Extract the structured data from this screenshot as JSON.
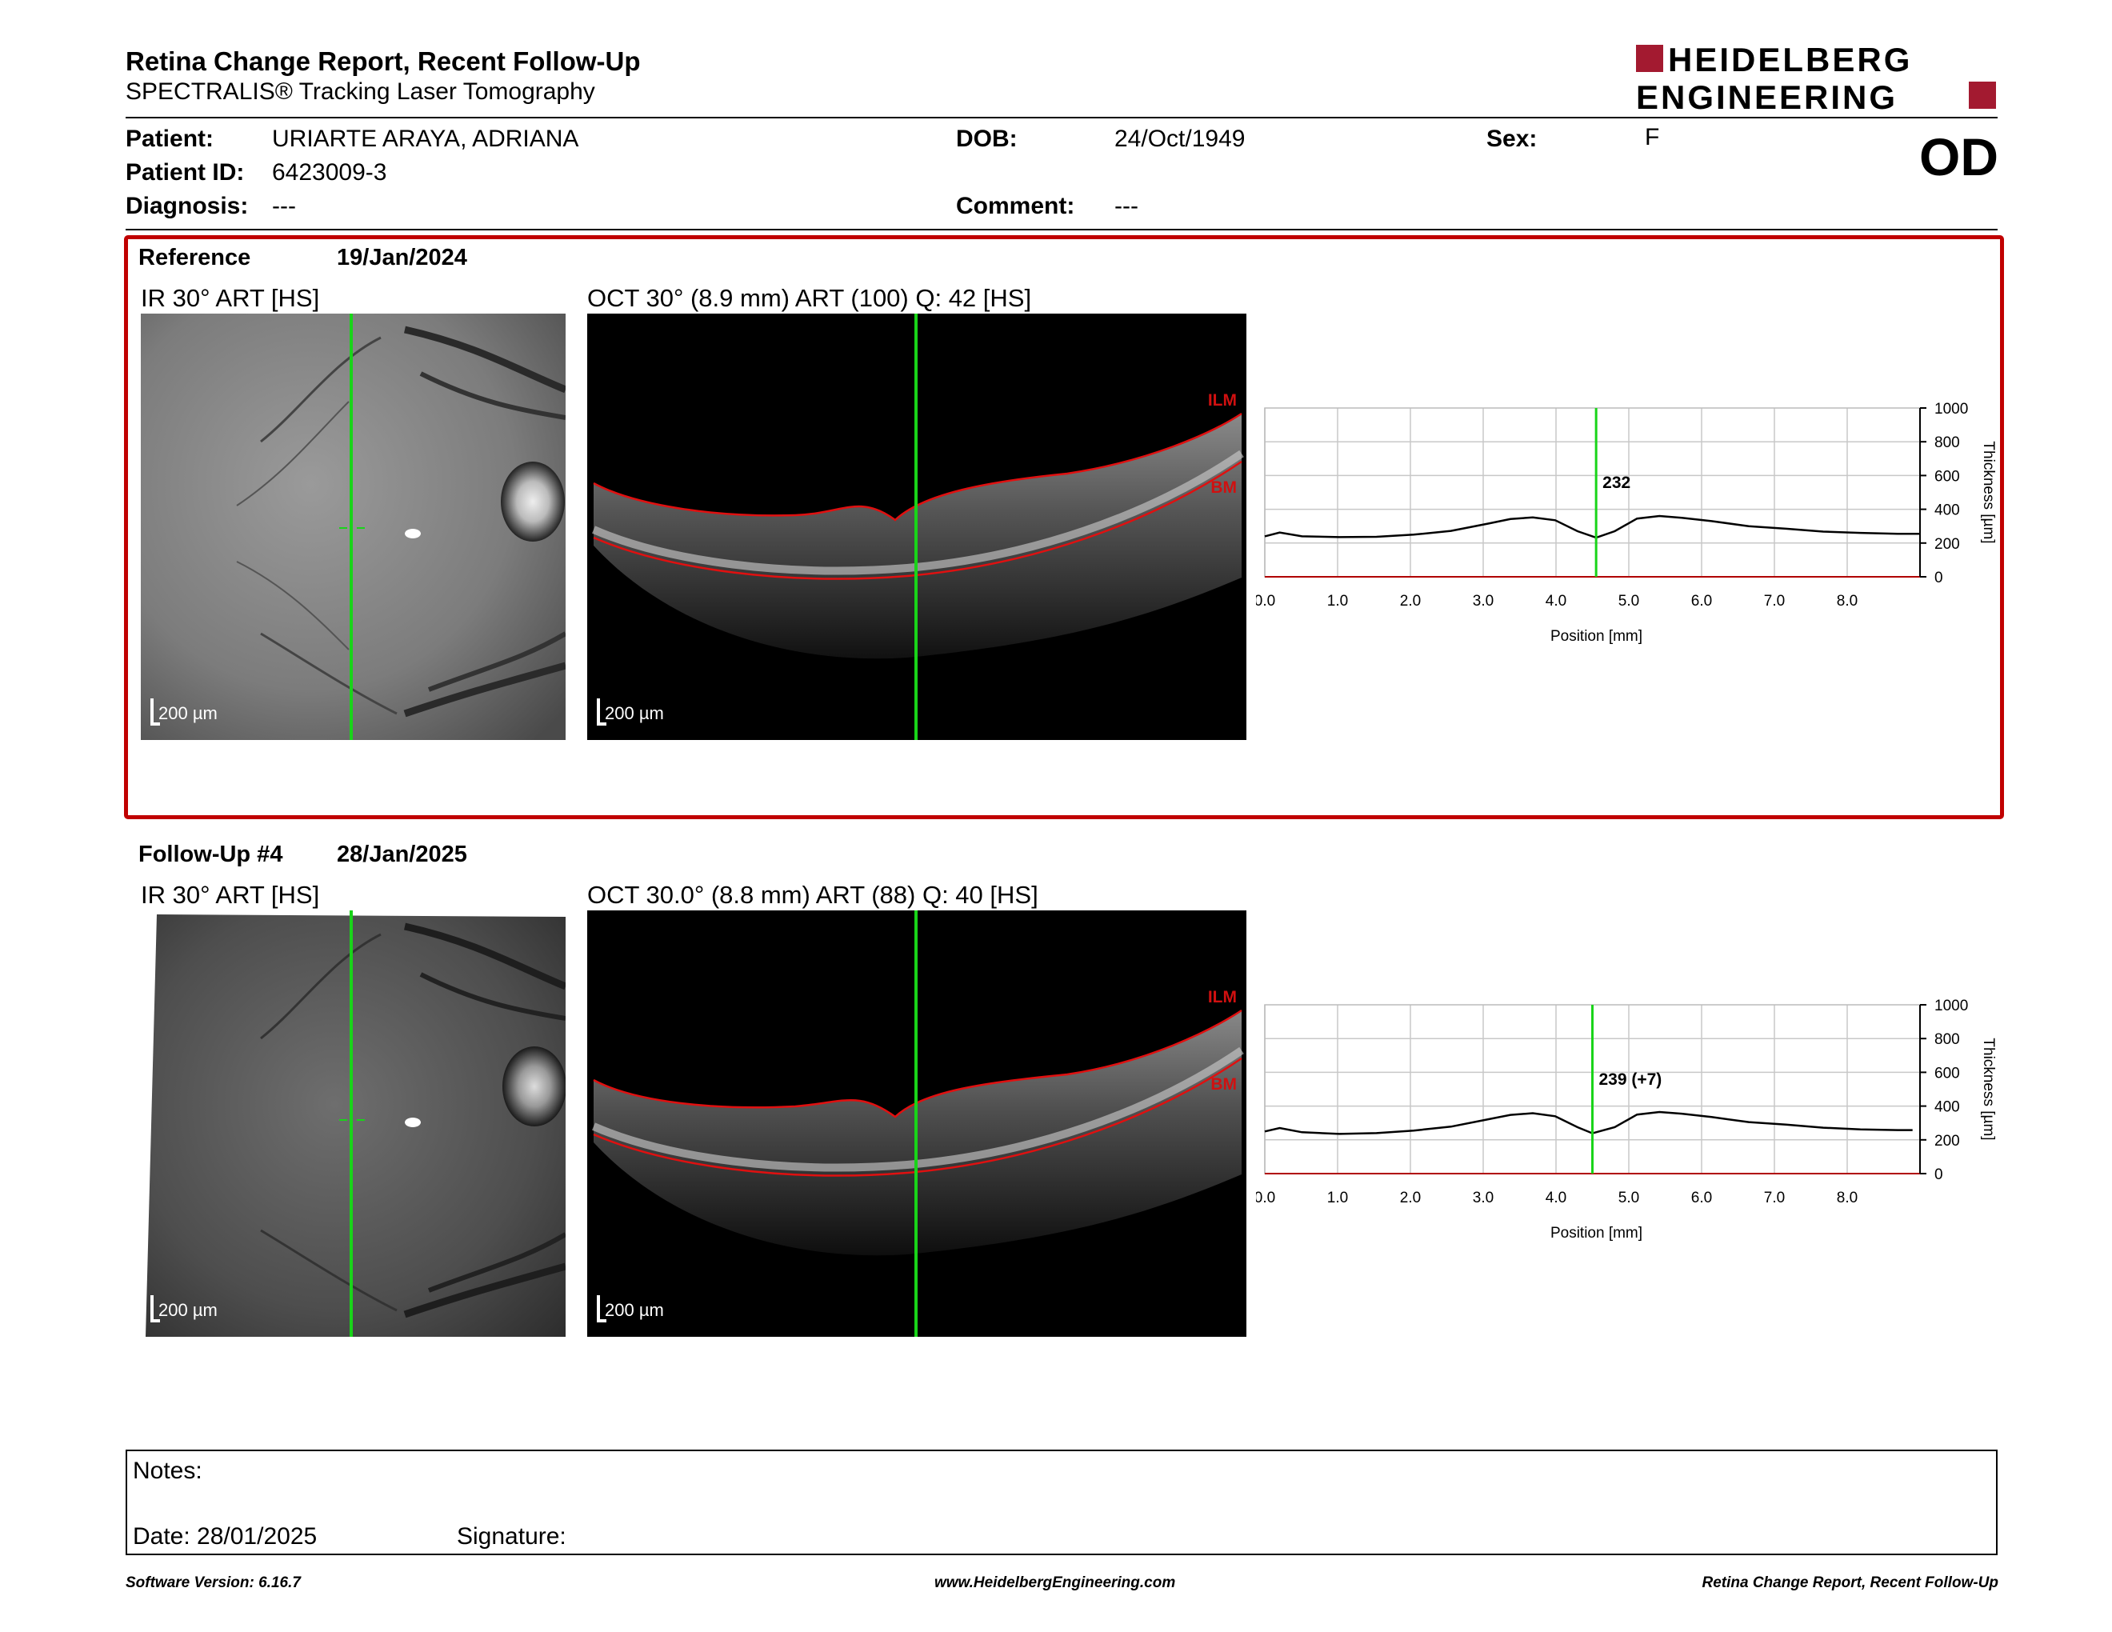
{
  "header": {
    "title": "Retina Change Report, Recent Follow-Up",
    "subtitle": "SPECTRALIS® Tracking Laser Tomography",
    "logo_line1": "HEIDELBERG",
    "logo_line2": "ENGINEERING",
    "brand_color": "#a31a30"
  },
  "patient": {
    "patient_label": "Patient:",
    "patient_value": "URIARTE ARAYA, ADRIANA",
    "id_label": "Patient ID:",
    "id_value": "6423009-3",
    "diagnosis_label": "Diagnosis:",
    "diagnosis_value": "---",
    "dob_label": "DOB:",
    "dob_value": "24/Oct/1949",
    "comment_label": "Comment:",
    "comment_value": "---",
    "sex_label": "Sex:",
    "sex_value": "F",
    "eye": "OD"
  },
  "reference": {
    "label": "Reference",
    "date": "19/Jan/2024",
    "ir_caption": "IR 30° ART [HS]",
    "oct_caption": "OCT 30° (8.9 mm) ART (100) Q: 42 [HS]",
    "scale_ir": "200 µm",
    "scale_oct": "200 µm",
    "ilm": "ILM",
    "bm": "BM"
  },
  "followup": {
    "label": "Follow-Up #4",
    "date": "28/Jan/2025",
    "ir_caption": "IR 30° ART [HS]",
    "oct_caption": "OCT 30.0° (8.8 mm) ART (88) Q: 40 [HS]",
    "scale_ir": "200 µm",
    "scale_oct": "200 µm",
    "ilm": "ILM",
    "bm": "BM"
  },
  "chart_data": [
    {
      "type": "line",
      "xlabel": "Position [mm]",
      "ylabel": "Thickness [µm]",
      "xlim": [
        0.0,
        8.8
      ],
      "ylim": [
        0,
        1000
      ],
      "xticks": [
        "0.0",
        "1.0",
        "2.0",
        "3.0",
        "4.0",
        "5.0",
        "6.0",
        "7.0",
        "8.0"
      ],
      "yticks": [
        "0",
        "200",
        "400",
        "600",
        "800",
        "1000"
      ],
      "marker_x": 4.45,
      "marker_label": "232",
      "x": [
        0.0,
        0.2,
        0.5,
        1.0,
        1.5,
        2.0,
        2.5,
        3.0,
        3.3,
        3.6,
        3.9,
        4.2,
        4.45,
        4.7,
        5.0,
        5.3,
        5.6,
        6.0,
        6.5,
        7.0,
        7.5,
        8.0,
        8.5,
        8.8
      ],
      "y": [
        240,
        262,
        240,
        235,
        237,
        250,
        272,
        315,
        342,
        352,
        335,
        270,
        232,
        270,
        345,
        360,
        350,
        330,
        300,
        285,
        268,
        260,
        255,
        255
      ]
    },
    {
      "type": "line",
      "xlabel": "Position [mm]",
      "ylabel": "Thickness [µm]",
      "xlim": [
        0.0,
        8.7
      ],
      "ylim": [
        0,
        1000
      ],
      "xticks": [
        "0.0",
        "1.0",
        "2.0",
        "3.0",
        "4.0",
        "5.0",
        "6.0",
        "7.0",
        "8.0"
      ],
      "yticks": [
        "0",
        "200",
        "400",
        "600",
        "800",
        "1000"
      ],
      "marker_x": 4.4,
      "marker_label": "239 (+7)",
      "x": [
        0.0,
        0.2,
        0.5,
        1.0,
        1.5,
        2.0,
        2.5,
        3.0,
        3.3,
        3.6,
        3.9,
        4.2,
        4.4,
        4.7,
        5.0,
        5.3,
        5.6,
        6.0,
        6.5,
        7.0,
        7.5,
        8.0,
        8.5,
        8.7
      ],
      "y": [
        250,
        270,
        245,
        235,
        240,
        255,
        278,
        322,
        348,
        358,
        340,
        275,
        239,
        275,
        350,
        365,
        355,
        335,
        305,
        290,
        272,
        262,
        258,
        258
      ]
    }
  ],
  "notes": {
    "notes_label": "Notes:",
    "date_label": "Date: 28/01/2025",
    "signature_label": "Signature:"
  },
  "footer": {
    "software": "Software Version: 6.16.7",
    "website": "www.HeidelbergEngineering.com",
    "report": "Retina Change Report, Recent Follow-Up"
  }
}
